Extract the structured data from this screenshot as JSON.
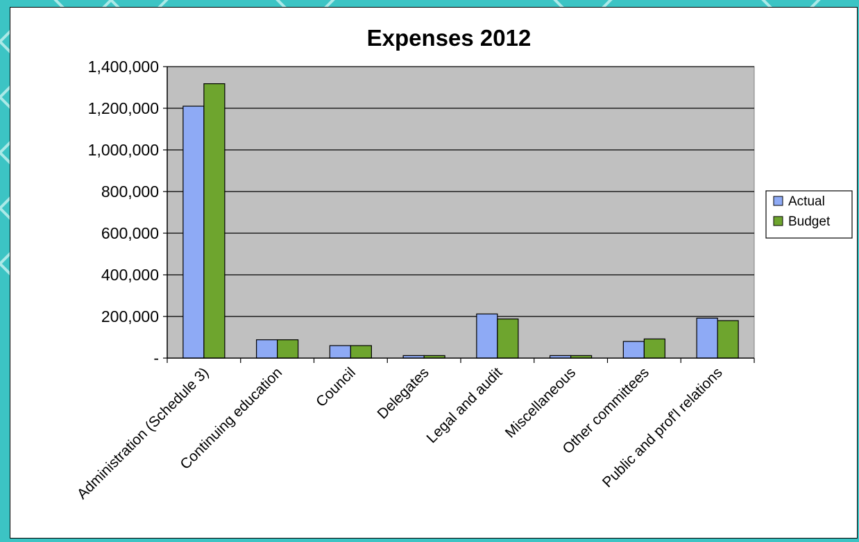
{
  "chart_data": {
    "type": "bar",
    "title": "Expenses 2012",
    "xlabel": "",
    "ylabel": "",
    "categories": [
      "Administration (Schedule 3)",
      "Continuing education",
      "Council",
      "Delegates",
      "Legal and audit",
      "Miscellaneous",
      "Other committees",
      "Public and prof'l relations"
    ],
    "series": [
      {
        "name": "Actual",
        "color": "#8eaaf5",
        "values": [
          1210000,
          88000,
          60000,
          12000,
          212000,
          12000,
          80000,
          192000
        ]
      },
      {
        "name": "Budget",
        "color": "#6ea52e",
        "values": [
          1318000,
          88000,
          60000,
          12000,
          188000,
          12000,
          92000,
          180000
        ]
      }
    ],
    "ylim": [
      0,
      1400000
    ],
    "yticks": [
      {
        "value": 0,
        "label": "-"
      },
      {
        "value": 200000,
        "label": "200,000"
      },
      {
        "value": 400000,
        "label": "400,000"
      },
      {
        "value": 600000,
        "label": "600,000"
      },
      {
        "value": 800000,
        "label": "800,000"
      },
      {
        "value": 1000000,
        "label": "1,000,000"
      },
      {
        "value": 1200000,
        "label": "1,200,000"
      },
      {
        "value": 1400000,
        "label": "1,400,000"
      }
    ],
    "grid": true,
    "plot_background": "#c0c0c0",
    "legend_position": "right"
  }
}
